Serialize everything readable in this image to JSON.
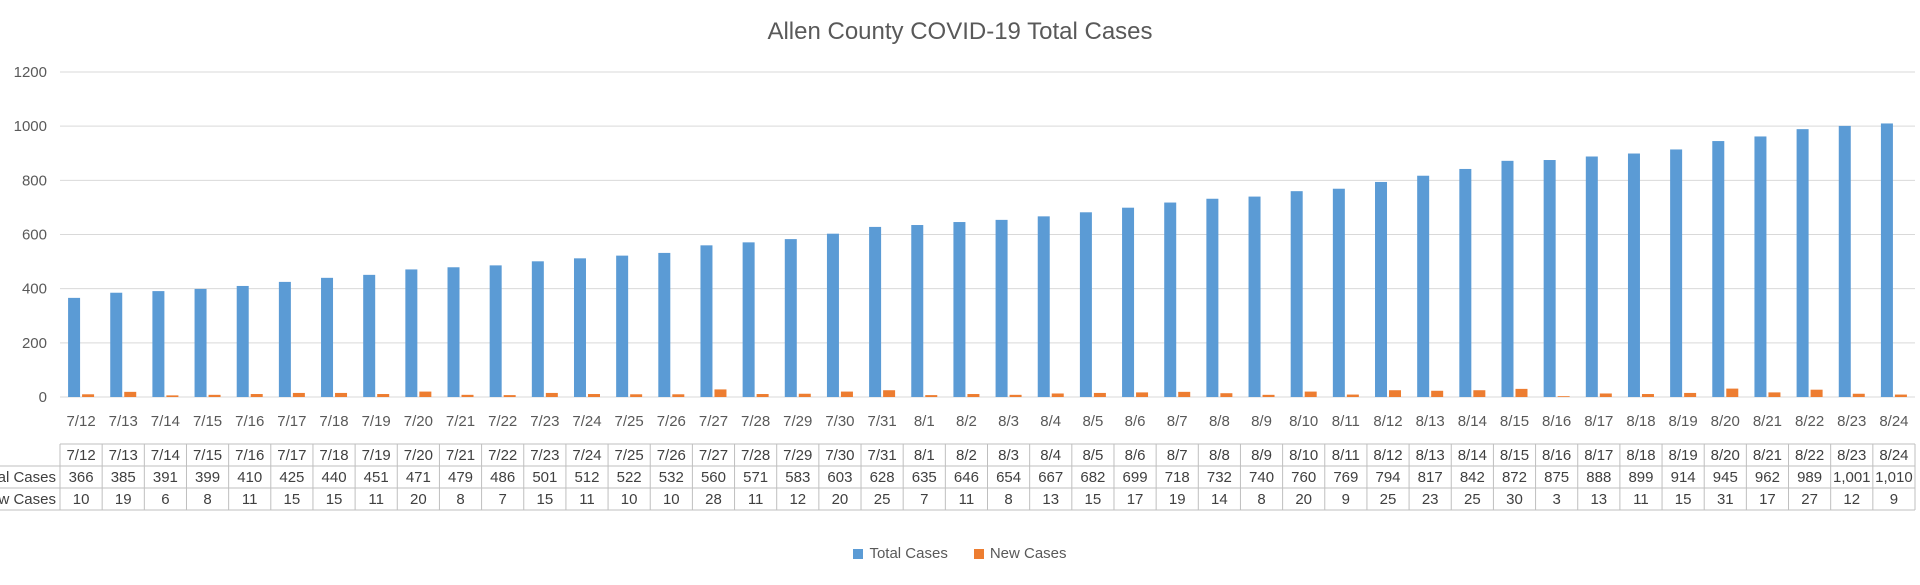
{
  "chart_data": {
    "type": "bar",
    "title": "Allen County COVID-19 Total Cases",
    "categories": [
      "7/12",
      "7/13",
      "7/14",
      "7/15",
      "7/16",
      "7/17",
      "7/18",
      "7/19",
      "7/20",
      "7/21",
      "7/22",
      "7/23",
      "7/24",
      "7/25",
      "7/26",
      "7/27",
      "7/28",
      "7/29",
      "7/30",
      "7/31",
      "8/1",
      "8/2",
      "8/3",
      "8/4",
      "8/5",
      "8/6",
      "8/7",
      "8/8",
      "8/9",
      "8/10",
      "8/11",
      "8/12",
      "8/13",
      "8/14",
      "8/15",
      "8/16",
      "8/17",
      "8/18",
      "8/19",
      "8/20",
      "8/21",
      "8/22",
      "8/23",
      "8/24"
    ],
    "series": [
      {
        "name": "Total Cases",
        "color": "#5B9BD5",
        "values": [
          366,
          385,
          391,
          399,
          410,
          425,
          440,
          451,
          471,
          479,
          486,
          501,
          512,
          522,
          532,
          560,
          571,
          583,
          603,
          628,
          635,
          646,
          654,
          667,
          682,
          699,
          718,
          732,
          740,
          760,
          769,
          794,
          817,
          842,
          872,
          875,
          888,
          899,
          914,
          945,
          962,
          989,
          1001,
          1010
        ],
        "table_labels": [
          "366",
          "385",
          "391",
          "399",
          "410",
          "425",
          "440",
          "451",
          "471",
          "479",
          "486",
          "501",
          "512",
          "522",
          "532",
          "560",
          "571",
          "583",
          "603",
          "628",
          "635",
          "646",
          "654",
          "667",
          "682",
          "699",
          "718",
          "732",
          "740",
          "760",
          "769",
          "794",
          "817",
          "842",
          "872",
          "875",
          "888",
          "899",
          "914",
          "945",
          "962",
          "989",
          "1,001",
          "1,010"
        ]
      },
      {
        "name": "New Cases",
        "color": "#ED7D31",
        "values": [
          10,
          19,
          6,
          8,
          11,
          15,
          15,
          11,
          20,
          8,
          7,
          15,
          11,
          10,
          10,
          28,
          11,
          12,
          20,
          25,
          7,
          11,
          8,
          13,
          15,
          17,
          19,
          14,
          8,
          20,
          9,
          25,
          23,
          25,
          30,
          3,
          13,
          11,
          15,
          31,
          17,
          27,
          12,
          9
        ],
        "table_labels": [
          "10",
          "19",
          "6",
          "8",
          "11",
          "15",
          "15",
          "11",
          "20",
          "8",
          "7",
          "15",
          "11",
          "10",
          "10",
          "28",
          "11",
          "12",
          "20",
          "25",
          "7",
          "11",
          "8",
          "13",
          "15",
          "17",
          "19",
          "14",
          "8",
          "20",
          "9",
          "25",
          "23",
          "25",
          "30",
          "3",
          "13",
          "11",
          "15",
          "31",
          "17",
          "27",
          "12",
          "9"
        ]
      }
    ],
    "table_row_labels": [
      "Total Cases",
      "New Cases"
    ],
    "ylim": [
      0,
      1200
    ],
    "yticks": [
      "0",
      "200",
      "400",
      "600",
      "800",
      "1000",
      "1200"
    ],
    "grid": true,
    "legend": "bottom",
    "data_table": true
  }
}
